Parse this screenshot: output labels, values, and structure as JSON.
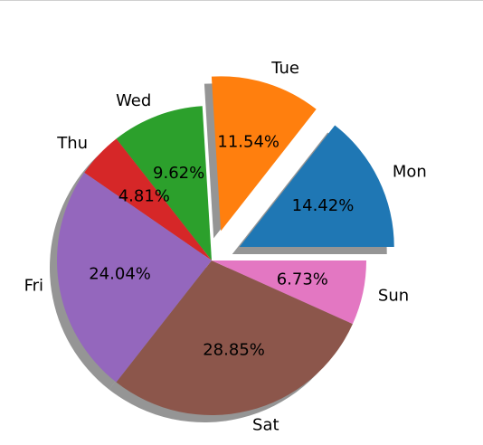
{
  "chart_data": {
    "type": "pie",
    "title": "",
    "categories": [
      "Mon",
      "Tue",
      "Wed",
      "Thu",
      "Fri",
      "Sat",
      "Sun"
    ],
    "values": [
      14.42,
      11.54,
      9.62,
      4.81,
      24.04,
      28.85,
      6.73
    ],
    "value_labels": [
      "14.42%",
      "11.54%",
      "9.62%",
      "4.81%",
      "24.04%",
      "28.85%",
      "6.73%"
    ],
    "exploded": [
      "Mon",
      "Tue"
    ],
    "shadow": true,
    "colors": [
      "#1f77b4",
      "#ff7f0e",
      "#2ca02c",
      "#d62728",
      "#9467bd",
      "#8c564b",
      "#e377c2"
    ],
    "start_angle_deg": 0,
    "direction": "counterclockwise",
    "legend": "none"
  }
}
